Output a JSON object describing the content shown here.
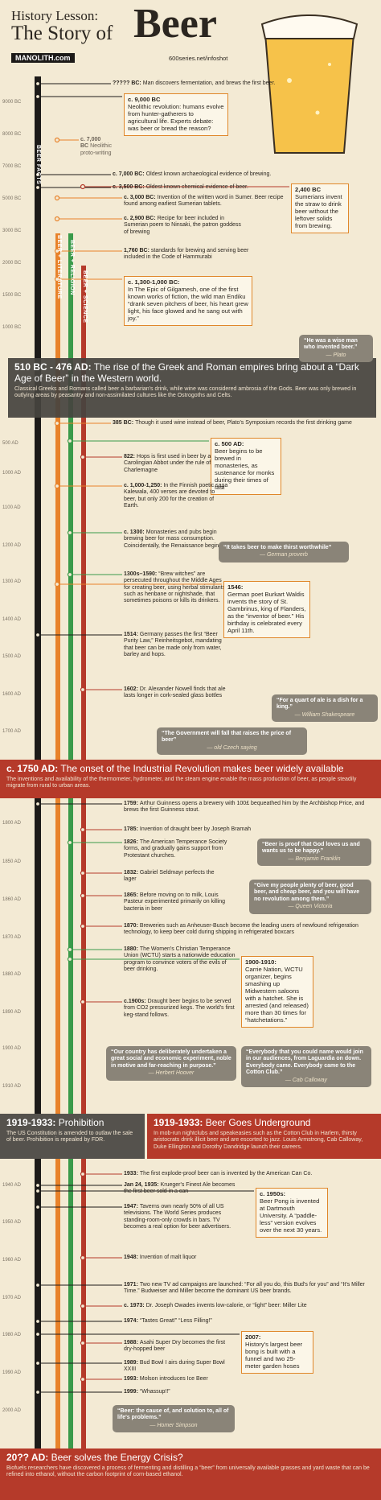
{
  "header": {
    "title_line1": "History Lesson:",
    "title_line2": "The Story of",
    "title_word": "Beer",
    "site": "MANOLITH.com",
    "url": "600series.net/infoshot"
  },
  "columns": [
    "BEER FACTS",
    "BEER + LITERATURE",
    "BEER + RELIGION",
    "BEER + SCIENCE"
  ],
  "years": [
    "9000 BC",
    "8000 BC",
    "7000 BC",
    "5000 BC",
    "3000 BC",
    "2000 BC",
    "1500 BC",
    "1000 BC",
    "500 AD",
    "1000 AD",
    "1100 AD",
    "1200 AD",
    "1300 AD",
    "1400 AD",
    "1500 AD",
    "1600 AD",
    "1700 AD",
    "1800 AD",
    "1850 AD",
    "1860 AD",
    "1870 AD",
    "1880 AD",
    "1890 AD",
    "1900 AD",
    "1910 AD",
    "1940 AD",
    "1950 AD",
    "1960 AD",
    "1970 AD",
    "1980 AD",
    "1990 AD",
    "2000 AD"
  ],
  "events": [
    {
      "date": "????? BC:",
      "text": "Man discovers fermentation, and brews the first beer."
    },
    {
      "date": "c. 9,000 BC",
      "text": "Neolithic revolution: humans evolve from hunter-gatherers to agricultural life. Experts debate: was beer or bread the reason?"
    },
    {
      "date": "c. 7,000 BC",
      "text": "Neolithic proto-writing"
    },
    {
      "date": "c. 7,000 BC:",
      "text": "Oldest known archaeological evidence of brewing."
    },
    {
      "date": "c. 3,500 BC:",
      "text": "Oldest known chemical evidence of beer."
    },
    {
      "date": "c. 3,000 BC:",
      "text": "Invention of the written word in Sumer. Beer recipe found among earliest Sumerian tablets."
    },
    {
      "date": "2,400 BC",
      "text": "Sumerians invent the straw to drink beer without the leftover solids from brewing."
    },
    {
      "date": "c. 2,900 BC:",
      "text": "Recipe for beer included in Sumerian poem to Ninsaki, the patron goddess of brewing"
    },
    {
      "date": "1,760 BC:",
      "text": "standards for brewing and serving beer included in the Code of Hammurabi"
    },
    {
      "date": "c. 1,300-1,000 BC:",
      "text": "In The Epic of Gilgamesh, one of the first known works of fiction, the wild man Endiku “drank seven pitchers of beer, his heart grew light, his face glowed and he sang out with joy.”"
    },
    {
      "date": "385 BC:",
      "text": "Though it used wine instead of beer, Plato's Symposium records the first drinking game"
    },
    {
      "date": "c. 500 AD:",
      "text": "Beer begins to be brewed in monasteries, as sustenance for monks during their times of fast"
    },
    {
      "date": "822:",
      "text": "Hops is first used in beer by a Carolingian Abbot under the rule of Charlemagne"
    },
    {
      "date": "c. 1,000-1,250:",
      "text": "In the Finnish poetic saga Kalewala, 400 verses are devoted to beer, but only 200 for the creation of Earth."
    },
    {
      "date": "c. 1300:",
      "text": "Monasteries and pubs begin brewing beer for mass consumption. Coincidentally, the Renaissance begins."
    },
    {
      "date": "1300s–1590:",
      "text": "“Brew witches” are persecuted throughout the Middle Ages for creating beer, using herbal stimulants such as henbane or nightshade, that sometimes poisons or kills its drinkers."
    },
    {
      "date": "1546:",
      "text": "German poet Burkart Waldis invents the story of St. Gambrinus, king of Flanders, as the “inventor of beer.” His birthday is celebrated every April 11th."
    },
    {
      "date": "1514:",
      "text": "Germany passes the first “Beer Purity Law,” Reinheitsgebot, mandating that beer can be made only from water, barley and hops."
    },
    {
      "date": "1602:",
      "text": "Dr. Alexander Nowell finds that ale lasts longer in cork-sealed glass bottles"
    },
    {
      "date": "1759:",
      "text": "Arthur Guinness opens a brewery with 100£ bequeathed him by the Archbishop Price, and brews the first Guinness stout."
    },
    {
      "date": "1785:",
      "text": "Invention of draught beer by Joseph Bramah"
    },
    {
      "date": "1826:",
      "text": "The American Temperance Society forms, and gradually gains support from Protestant churches."
    },
    {
      "date": "1832:",
      "text": "Gabriel Seldmayr perfects the lager"
    },
    {
      "date": "1865:",
      "text": "Before moving on to milk, Louis Pasteur experimented primarily on killing bacteria in beer"
    },
    {
      "date": "1870:",
      "text": "Breweries such as Anheuser-Busch become the leading users of newfound refrigeration technology, to keep beer cold during shipping in refrigerated boxcars"
    },
    {
      "date": "1880:",
      "text": "The Women's Christian Temperance Union (WCTU) starts a nationwide education program to convince voters of the evils of beer drinking."
    },
    {
      "date": "1900-1910:",
      "text": "Carrie Nation, WCTU organizer, begins smashing up Midwestern saloons with a hatchet. She is arrested (and released) more than 30 times for “hatchetations.”"
    },
    {
      "date": "c.1900s:",
      "text": "Draught beer begins to be served from CO2 pressurized kegs. The world's first keg-stand follows."
    },
    {
      "date": "1933:",
      "text": "The first explode-proof beer can is invented by the American Can Co."
    },
    {
      "date": "Jan 24, 1935:",
      "text": "Krueger's Finest Ale becomes the first beer sold in a can"
    },
    {
      "date": "1947:",
      "text": "Taverns own nearly 50% of all US televisions. The World Series produces standing-room-only crowds in bars. TV becomes a real option for beer advertisers."
    },
    {
      "date": "c. 1950s:",
      "text": "Beer Pong is invented at Dartmouth University. A “paddle-less” version evolves over the next 30 years."
    },
    {
      "date": "1948:",
      "text": "Invention of malt liquor"
    },
    {
      "date": "1971:",
      "text": "Two new TV ad campaigns are launched: “For all you do, this Bud's for you” and “It's Miller Time.” Budweiser and Miller become the dominant US beer brands."
    },
    {
      "date": "c. 1973:",
      "text": "Dr. Joseph Owades invents low-calorie, or “light” beer: Miller Lite"
    },
    {
      "date": "1974:",
      "text": "“Tastes Great!” “Less Filling!”"
    },
    {
      "date": "2007:",
      "text": "History's largest beer bong is built with a funnel and two 25-meter garden hoses"
    },
    {
      "date": "1988:",
      "text": "Asahi Super Dry becomes the first dry-hopped beer"
    },
    {
      "date": "1989:",
      "text": "Bud Bowl I airs during Super Bowl XXIII"
    },
    {
      "date": "1993:",
      "text": "Molson introduces Ice Beer"
    },
    {
      "date": "1999:",
      "text": "“Whassup!!”"
    }
  ],
  "quotes": [
    {
      "text": "“He was a wise man who invented beer.”",
      "source": "— Plato"
    },
    {
      "text": "“It takes beer to make thirst worthwhile”",
      "source": "— German proverb"
    },
    {
      "text": "“For a quart of ale is a dish for a king.”",
      "source": "— William Shakespeare"
    },
    {
      "text": "“The Government will fall that raises the price of beer”",
      "source": "— old Czech saying"
    },
    {
      "text": "“Beer is proof that God loves us and wants us to be happy.”",
      "source": "— Benjamin Franklin"
    },
    {
      "text": "“Give my people plenty of beer, good beer, and cheap beer, and you will have no revolution among them.”",
      "source": "— Queen Victoria"
    },
    {
      "text": "“Our country has deliberately undertaken a great social and economic experiment, noble in motive and far-reaching in purpose.”",
      "source": "— Herbert Hoover"
    },
    {
      "text": "“Everybody that you could name would join in our audiences, from Laguardia on down. Everybody came. Everybody came to the Cotton Club.”",
      "source": "— Cab Calloway"
    },
    {
      "text": "“Beer: the cause of, and solution to, all of life's problems.”",
      "source": "— Homer Simpson"
    }
  ],
  "banners": [
    {
      "date": "510 BC - 476 AD:",
      "title": "The rise of the Greek and Roman empires bring about a “Dark Age of Beer” in the Western world.",
      "text": "Classical Greeks and Romans called beer a barbarian's drink, while wine was considered ambrosia of the Gods. Beer was only brewed in outlying areas by peasantry and non-assimilated cultures like the Ostrogoths and Celts."
    },
    {
      "date": "c. 1750 AD:",
      "title": "The onset of the Industrial Revolution makes beer widely available",
      "text": "The inventions and availability of the thermometer, hydrometer, and the steam engine enable the mass production of beer, as people steadily migrate from rural to urban areas."
    },
    {
      "date": "1919-1933:",
      "title": "Prohibition",
      "text": "The US Constitution is amended to outlaw the sale of beer. Prohibition is repealed by FDR."
    },
    {
      "date": "1919-1933:",
      "title": "Beer Goes Underground",
      "text": "In mob-run nightclubs and speakeasies such as the Cotton Club in Harlem, thirsty aristocrats drink illicit beer and are escorted to jazz. Louis Armstrong, Cab Calloway, Duke Ellington and Dorothy Dandridge launch their careers."
    },
    {
      "date": "20?? AD:",
      "title": "Beer solves the Energy Crisis?",
      "text": "Biofuels researchers have discovered a process of fermenting and distilling a “beer” from universally available grasses and yard waste that can be refined into ethanol, without the carbon footprint of corn-based ethanol."
    }
  ]
}
